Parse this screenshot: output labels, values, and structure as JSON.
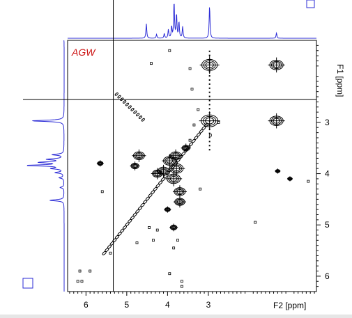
{
  "chart_data": {
    "type": "contour",
    "sample_label": "AGW",
    "x_axis": {
      "label": "F2 [ppm]",
      "range": [
        6.45,
        0.35
      ],
      "ticks": [
        6,
        5,
        4,
        3
      ],
      "tick_labels": [
        "6",
        "5",
        "4",
        "3"
      ]
    },
    "y_axis": {
      "label": "F1 [ppm]",
      "range": [
        1.4,
        6.3
      ],
      "ticks": [
        3,
        4,
        5,
        6
      ],
      "tick_labels": [
        "3",
        "4",
        "5",
        "6"
      ]
    },
    "crosshair": {
      "f2": 5.33,
      "f1": 2.55
    },
    "peaks_1d": [
      {
        "ppm": 4.52,
        "height": 0.38
      },
      {
        "ppm": 4.27,
        "height": 0.1
      },
      {
        "ppm": 4.08,
        "height": 0.12
      },
      {
        "ppm": 3.98,
        "height": 0.22
      },
      {
        "ppm": 3.9,
        "height": 0.3
      },
      {
        "ppm": 3.84,
        "height": 0.95
      },
      {
        "ppm": 3.78,
        "height": 0.62
      },
      {
        "ppm": 3.72,
        "height": 0.42
      },
      {
        "ppm": 3.63,
        "height": 0.3
      },
      {
        "ppm": 2.97,
        "height": 0.85
      },
      {
        "ppm": 1.33,
        "height": 0.14
      }
    ],
    "diagonal": {
      "from": [
        5.55,
        5.55
      ],
      "to": [
        3.05,
        3.05
      ]
    },
    "cross_peaks": [
      {
        "f2": 2.97,
        "f1": 1.88,
        "size": 1.4
      },
      {
        "f2": 1.33,
        "f1": 1.88,
        "size": 1.2
      },
      {
        "f2": 2.97,
        "f1": 2.97,
        "size": 1.5
      },
      {
        "f2": 1.33,
        "f1": 2.97,
        "size": 1.2
      },
      {
        "f2": 4.7,
        "f1": 3.65,
        "size": 1.0
      },
      {
        "f2": 3.95,
        "f1": 3.75,
        "size": 1.1
      },
      {
        "f2": 3.78,
        "f1": 3.9,
        "size": 1.2
      },
      {
        "f2": 4.1,
        "f1": 3.95,
        "size": 1.0
      },
      {
        "f2": 3.85,
        "f1": 4.1,
        "size": 1.2
      },
      {
        "f2": 4.25,
        "f1": 4.0,
        "size": 0.9
      },
      {
        "f2": 3.7,
        "f1": 4.35,
        "size": 1.0
      },
      {
        "f2": 3.8,
        "f1": 3.65,
        "size": 1.0
      },
      {
        "f2": 4.8,
        "f1": 3.85,
        "size": 0.7
      },
      {
        "f2": 3.55,
        "f1": 3.5,
        "size": 0.7
      },
      {
        "f2": 3.7,
        "f1": 4.55,
        "size": 0.9
      },
      {
        "f2": 5.65,
        "f1": 3.8,
        "size": 0.5
      },
      {
        "f2": 4.0,
        "f1": 4.7,
        "size": 0.5
      },
      {
        "f2": 3.85,
        "f1": 5.05,
        "size": 0.6
      },
      {
        "f2": 1.0,
        "f1": 4.1,
        "size": 0.4
      },
      {
        "f2": 1.3,
        "f1": 3.95,
        "size": 0.4
      }
    ],
    "noise_points": [
      {
        "f2": 6.15,
        "f1": 5.9
      },
      {
        "f2": 6.2,
        "f1": 6.1
      },
      {
        "f2": 6.1,
        "f1": 6.1
      },
      {
        "f2": 5.9,
        "f1": 5.9
      },
      {
        "f2": 5.6,
        "f1": 4.35
      },
      {
        "f2": 5.4,
        "f1": 5.55
      },
      {
        "f2": 4.4,
        "f1": 1.85
      },
      {
        "f2": 3.45,
        "f1": 1.95
      },
      {
        "f2": 3.95,
        "f1": 1.6
      },
      {
        "f2": 3.65,
        "f1": 6.1
      },
      {
        "f2": 3.65,
        "f1": 6.2
      },
      {
        "f2": 3.95,
        "f1": 5.95
      },
      {
        "f2": 4.75,
        "f1": 5.35
      },
      {
        "f2": 4.35,
        "f1": 5.3
      },
      {
        "f2": 4.25,
        "f1": 5.1
      },
      {
        "f2": 4.45,
        "f1": 5.05
      },
      {
        "f2": 3.75,
        "f1": 5.3
      },
      {
        "f2": 3.85,
        "f1": 5.45
      },
      {
        "f2": 2.95,
        "f1": 3.25
      },
      {
        "f2": 3.35,
        "f1": 3.05
      },
      {
        "f2": 2.75,
        "f1": 3.0
      },
      {
        "f2": 1.85,
        "f1": 4.95
      },
      {
        "f2": 3.2,
        "f1": 4.3
      },
      {
        "f2": 0.55,
        "f1": 4.15
      },
      {
        "f2": 3.45,
        "f1": 3.35
      },
      {
        "f2": 3.4,
        "f1": 2.35
      },
      {
        "f2": 3.25,
        "f1": 2.75
      }
    ]
  }
}
